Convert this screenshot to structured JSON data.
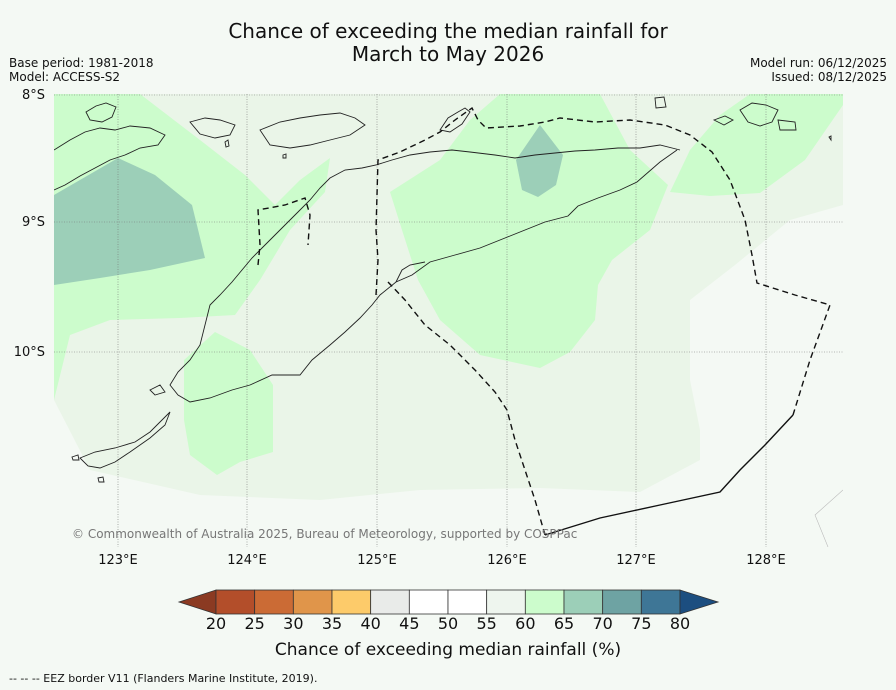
{
  "title": {
    "line1": "Chance of exceeding the median rainfall for",
    "line2": "March to May 2026"
  },
  "meta": {
    "base_period": "Base period: 1981-2018",
    "model": "Model: ACCESS-S2",
    "model_run": "Model run: 06/12/2025",
    "issued": "Issued: 08/12/2025"
  },
  "map": {
    "lat_labels": [
      "8°S",
      "9°S",
      "10°S"
    ],
    "lon_labels": [
      "123°E",
      "124°E",
      "125°E",
      "126°E",
      "127°E",
      "128°E"
    ],
    "copyright": "© Commonwealth of Australia 2025, Bureau of Meteorology, supported by COSPPac",
    "colors": {
      "c40_45": "#e9efe9",
      "c45_55": "#f4f9f4",
      "c55_60": "#e8f5e6",
      "c60_65": "#ccfccc",
      "c65_70": "#9ccfb8",
      "land_line": "#222222",
      "eez_line": "#111111"
    }
  },
  "colorbar": {
    "ticks": [
      "20",
      "25",
      "30",
      "35",
      "40",
      "45",
      "50",
      "55",
      "60",
      "65",
      "70",
      "75",
      "80"
    ],
    "bin_colors": [
      "#b34e2a",
      "#cb6b35",
      "#e0954a",
      "#fdcb6a",
      "#e9ebe9",
      "#ffffff",
      "#ffffff",
      "#eef5ee",
      "#ccfccc",
      "#9ccfb8",
      "#6ea3a3",
      "#3e7696"
    ],
    "under_color": "#8b3a22",
    "over_color": "#1c4e80",
    "label": "Chance of exceeding median rainfall (%)"
  },
  "eez_note": "--  --  -- EEZ border V11 (Flanders Marine Institute, 2019)."
}
